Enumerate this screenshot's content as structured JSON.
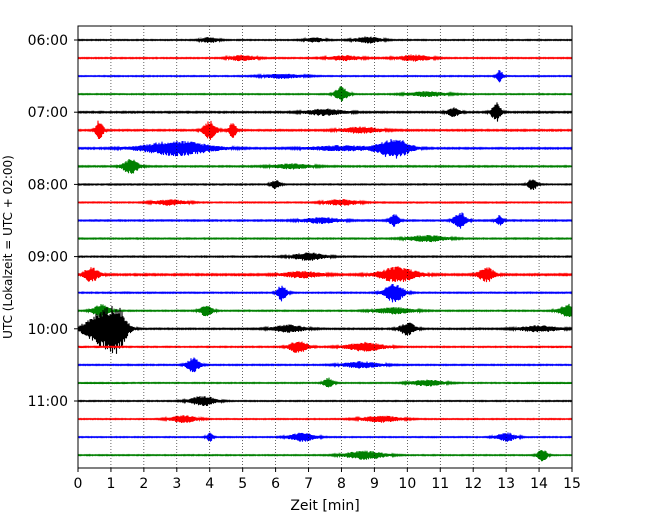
{
  "chart_data": {
    "type": "line",
    "title": "",
    "xlabel": "Zeit  [min]",
    "ylabel": "UTC (Lokalzeit = UTC + 02:00)",
    "xlim": [
      0,
      15
    ],
    "x_ticks": [
      "0",
      "1",
      "2",
      "3",
      "4",
      "5",
      "6",
      "7",
      "8",
      "9",
      "10",
      "11",
      "12",
      "13",
      "14",
      "15"
    ],
    "y_ticks": [
      "06:00",
      "07:00",
      "08:00",
      "09:00",
      "10:00",
      "11:00"
    ],
    "grid": "vertical-dotted",
    "line_interval_min": 15,
    "colors": [
      "#000000",
      "#ff0000",
      "#0000ff",
      "#008000"
    ],
    "traces": [
      {
        "time": "06:00",
        "color": "#000000",
        "base": 0.45,
        "events": [
          [
            4.0,
            0.9,
            0.25
          ],
          [
            7.2,
            0.7,
            0.3
          ],
          [
            8.8,
            1.0,
            0.4
          ]
        ]
      },
      {
        "time": "06:15",
        "color": "#ff0000",
        "base": 0.5,
        "events": [
          [
            5.0,
            0.9,
            0.4
          ],
          [
            8.1,
            0.8,
            0.5
          ],
          [
            10.2,
            1.0,
            0.5
          ]
        ]
      },
      {
        "time": "06:30",
        "color": "#0000ff",
        "base": 0.45,
        "events": [
          [
            6.2,
            0.7,
            0.6
          ],
          [
            12.8,
            2.0,
            0.1
          ]
        ]
      },
      {
        "time": "06:45",
        "color": "#008000",
        "base": 0.45,
        "events": [
          [
            8.0,
            2.4,
            0.2
          ],
          [
            10.6,
            0.8,
            0.6
          ]
        ]
      },
      {
        "time": "07:00",
        "color": "#000000",
        "base": 0.6,
        "events": [
          [
            7.5,
            1.0,
            0.6
          ],
          [
            11.4,
            1.4,
            0.2
          ],
          [
            12.7,
            3.0,
            0.15
          ]
        ]
      },
      {
        "time": "07:15",
        "color": "#ff0000",
        "base": 0.6,
        "events": [
          [
            0.65,
            3.2,
            0.12
          ],
          [
            4.0,
            3.0,
            0.2
          ],
          [
            4.7,
            2.4,
            0.12
          ],
          [
            8.6,
            1.0,
            0.6
          ]
        ]
      },
      {
        "time": "07:30",
        "color": "#0000ff",
        "base": 0.6,
        "events": [
          [
            3.0,
            2.3,
            1.1
          ],
          [
            8.0,
            0.8,
            1.0
          ],
          [
            9.6,
            3.2,
            0.5
          ]
        ]
      },
      {
        "time": "07:45",
        "color": "#008000",
        "base": 0.55,
        "events": [
          [
            1.6,
            2.4,
            0.25
          ],
          [
            6.5,
            0.8,
            0.6
          ]
        ]
      },
      {
        "time": "08:00",
        "color": "#000000",
        "base": 0.45,
        "events": [
          [
            6.0,
            1.4,
            0.15
          ],
          [
            13.8,
            1.8,
            0.15
          ]
        ]
      },
      {
        "time": "08:15",
        "color": "#ff0000",
        "base": 0.45,
        "events": [
          [
            2.8,
            0.9,
            0.5
          ],
          [
            8.0,
            1.0,
            0.5
          ]
        ]
      },
      {
        "time": "08:30",
        "color": "#0000ff",
        "base": 0.55,
        "events": [
          [
            7.4,
            0.9,
            0.6
          ],
          [
            9.6,
            2.0,
            0.15
          ],
          [
            11.6,
            2.6,
            0.2
          ],
          [
            12.8,
            1.6,
            0.12
          ]
        ]
      },
      {
        "time": "08:45",
        "color": "#008000",
        "base": 0.5,
        "events": [
          [
            10.6,
            1.0,
            0.6
          ]
        ]
      },
      {
        "time": "09:00",
        "color": "#000000",
        "base": 0.5,
        "events": [
          [
            7.0,
            1.2,
            0.5
          ]
        ]
      },
      {
        "time": "09:15",
        "color": "#ff0000",
        "base": 0.7,
        "events": [
          [
            0.4,
            2.2,
            0.25
          ],
          [
            6.8,
            1.0,
            0.6
          ],
          [
            9.7,
            2.4,
            0.6
          ],
          [
            12.4,
            2.4,
            0.25
          ]
        ]
      },
      {
        "time": "09:30",
        "color": "#0000ff",
        "base": 0.5,
        "events": [
          [
            6.2,
            2.6,
            0.15
          ],
          [
            9.6,
            3.0,
            0.3
          ]
        ]
      },
      {
        "time": "09:45",
        "color": "#008000",
        "base": 0.5,
        "events": [
          [
            0.7,
            2.2,
            0.25
          ],
          [
            3.9,
            1.8,
            0.2
          ],
          [
            9.6,
            1.0,
            0.6
          ],
          [
            14.9,
            2.0,
            0.3
          ]
        ]
      },
      {
        "time": "10:00",
        "color": "#000000",
        "base": 0.55,
        "events": [
          [
            0.7,
            5.5,
            0.5
          ],
          [
            1.2,
            5.5,
            0.3
          ],
          [
            6.4,
            1.2,
            0.5
          ],
          [
            10.0,
            2.0,
            0.25
          ],
          [
            14.0,
            1.0,
            0.6
          ]
        ]
      },
      {
        "time": "10:15",
        "color": "#ff0000",
        "base": 0.5,
        "events": [
          [
            6.7,
            2.0,
            0.3
          ],
          [
            8.7,
            1.4,
            0.6
          ]
        ]
      },
      {
        "time": "10:30",
        "color": "#0000ff",
        "base": 0.5,
        "events": [
          [
            3.5,
            2.4,
            0.2
          ],
          [
            8.6,
            1.0,
            0.6
          ]
        ]
      },
      {
        "time": "10:45",
        "color": "#008000",
        "base": 0.45,
        "events": [
          [
            7.6,
            1.6,
            0.15
          ],
          [
            10.6,
            1.0,
            0.5
          ]
        ]
      },
      {
        "time": "11:00",
        "color": "#000000",
        "base": 0.45,
        "events": [
          [
            3.8,
            1.6,
            0.4
          ]
        ]
      },
      {
        "time": "11:15",
        "color": "#ff0000",
        "base": 0.45,
        "events": [
          [
            3.2,
            1.2,
            0.4
          ],
          [
            9.2,
            1.0,
            0.6
          ]
        ]
      },
      {
        "time": "11:30",
        "color": "#0000ff",
        "base": 0.45,
        "events": [
          [
            4.0,
            1.4,
            0.1
          ],
          [
            6.8,
            1.4,
            0.4
          ],
          [
            13.0,
            1.4,
            0.3
          ]
        ]
      },
      {
        "time": "11:45",
        "color": "#008000",
        "base": 0.45,
        "events": [
          [
            8.7,
            1.4,
            0.6
          ],
          [
            14.1,
            2.0,
            0.15
          ]
        ]
      }
    ]
  }
}
